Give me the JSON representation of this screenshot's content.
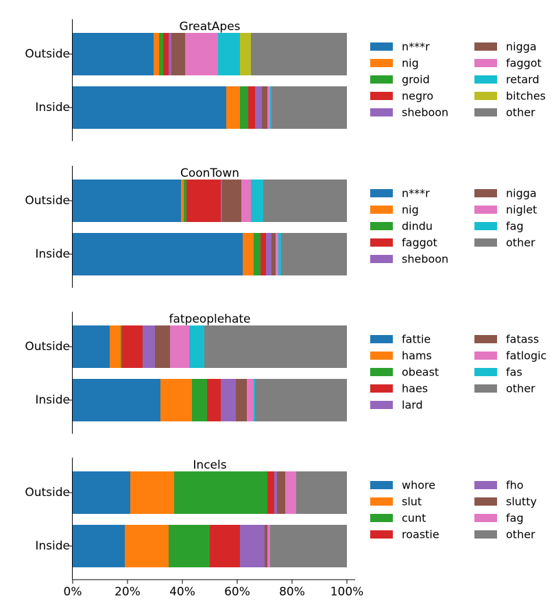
{
  "chart_data": [
    {
      "type": "bar",
      "orientation": "horizontal",
      "stacked": "percent",
      "title": "GreatApes",
      "categories": [
        "Outside",
        "Inside"
      ],
      "xlim": [
        0,
        100
      ],
      "grid": false,
      "legend_placement": "right",
      "series": [
        {
          "name": "n***r",
          "values": [
            29.5,
            56.0
          ]
        },
        {
          "name": "nig",
          "values": [
            2.0,
            5.0
          ]
        },
        {
          "name": "groid",
          "values": [
            1.5,
            3.0
          ]
        },
        {
          "name": "negro",
          "values": [
            2.0,
            2.5
          ]
        },
        {
          "name": "sheboon",
          "values": [
            1.0,
            2.5
          ]
        },
        {
          "name": "nigga",
          "values": [
            5.0,
            2.0
          ]
        },
        {
          "name": "faggot",
          "values": [
            12.0,
            1.0
          ]
        },
        {
          "name": "retard",
          "values": [
            8.0,
            0.5
          ]
        },
        {
          "name": "bitches",
          "values": [
            4.0,
            0.0
          ]
        },
        {
          "name": "other",
          "values": [
            35.0,
            27.5
          ]
        }
      ]
    },
    {
      "type": "bar",
      "orientation": "horizontal",
      "stacked": "percent",
      "title": "CoonTown",
      "categories": [
        "Outside",
        "Inside"
      ],
      "xlim": [
        0,
        100
      ],
      "grid": false,
      "legend_placement": "right",
      "series": [
        {
          "name": "n***r",
          "values": [
            39.5,
            62.0
          ]
        },
        {
          "name": "nig",
          "values": [
            1.0,
            4.0
          ]
        },
        {
          "name": "dindu",
          "values": [
            1.0,
            2.5
          ]
        },
        {
          "name": "faggot",
          "values": [
            12.5,
            2.0
          ]
        },
        {
          "name": "sheboon",
          "values": [
            0.5,
            2.0
          ]
        },
        {
          "name": "nigga",
          "values": [
            7.0,
            1.5
          ]
        },
        {
          "name": "niglet",
          "values": [
            3.5,
            1.0
          ]
        },
        {
          "name": "fag",
          "values": [
            4.5,
            1.0
          ]
        },
        {
          "name": "other",
          "values": [
            30.5,
            24.0
          ]
        }
      ]
    },
    {
      "type": "bar",
      "orientation": "horizontal",
      "stacked": "percent",
      "title": "fatpeoplehate",
      "categories": [
        "Outside",
        "Inside"
      ],
      "xlim": [
        0,
        100
      ],
      "grid": false,
      "legend_placement": "right",
      "series": [
        {
          "name": "fattie",
          "values": [
            13.5,
            32.0
          ]
        },
        {
          "name": "hams",
          "values": [
            4.0,
            11.5
          ]
        },
        {
          "name": "obeast",
          "values": [
            0.5,
            5.5
          ]
        },
        {
          "name": "haes",
          "values": [
            7.5,
            5.0
          ]
        },
        {
          "name": "lard",
          "values": [
            4.5,
            5.5
          ]
        },
        {
          "name": "fatass",
          "values": [
            5.5,
            4.0
          ]
        },
        {
          "name": "fatlogic",
          "values": [
            7.0,
            2.5
          ]
        },
        {
          "name": "fas",
          "values": [
            5.5,
            0.5
          ]
        },
        {
          "name": "other",
          "values": [
            52.0,
            33.5
          ]
        }
      ]
    },
    {
      "type": "bar",
      "orientation": "horizontal",
      "stacked": "percent",
      "title": "Incels",
      "categories": [
        "Outside",
        "Inside"
      ],
      "xlim": [
        0,
        100
      ],
      "xticks": [
        "0%",
        "20%",
        "40%",
        "60%",
        "80%",
        "100%"
      ],
      "grid": false,
      "legend_placement": "right",
      "series": [
        {
          "name": "whore",
          "values": [
            21.0,
            19.0
          ]
        },
        {
          "name": "slut",
          "values": [
            16.0,
            16.0
          ]
        },
        {
          "name": "cunt",
          "values": [
            34.0,
            15.0
          ]
        },
        {
          "name": "roastie",
          "values": [
            2.5,
            11.0
          ]
        },
        {
          "name": "fho",
          "values": [
            1.0,
            9.0
          ]
        },
        {
          "name": "slutty",
          "values": [
            3.0,
            1.0
          ]
        },
        {
          "name": "fag",
          "values": [
            4.0,
            1.0
          ]
        },
        {
          "name": "other",
          "values": [
            18.5,
            28.0
          ]
        }
      ]
    }
  ],
  "palette": [
    "#1f77b4",
    "#ff7f0e",
    "#2ca02c",
    "#d62728",
    "#9467bd",
    "#8c564b",
    "#e377c2",
    "#17becf",
    "#bcbd22",
    "#7f7f7f"
  ],
  "color_by_label": {
    "other": "#7f7f7f",
    "nigga": "#8c564b",
    "fatass": "#8c564b",
    "slutty": "#8c564b",
    "faggot_0": "#e377c2",
    "niglet": "#e377c2",
    "fatlogic": "#e377c2",
    "fag_3": "#e377c2",
    "retard": "#17becf",
    "fag_1": "#17becf",
    "fas": "#17becf",
    "bitches": "#bcbd22",
    "fho": "#9467bd",
    "sheboon": "#9467bd",
    "lard": "#9467bd",
    "faggot_1": "#d62728",
    "negro": "#d62728",
    "haes": "#d62728",
    "roastie": "#d62728"
  }
}
